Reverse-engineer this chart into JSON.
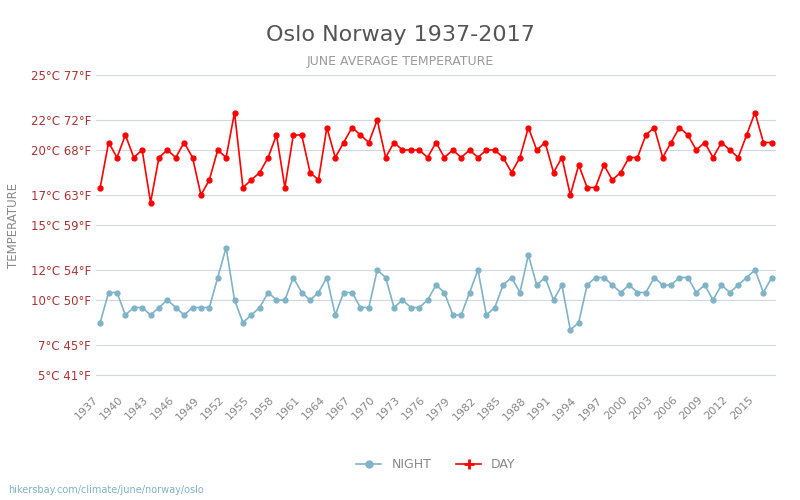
{
  "title": "Oslo Norway 1937-2017",
  "subtitle": "JUNE AVERAGE TEMPERATURE",
  "ylabel": "TEMPERATURE",
  "footer": "hikersbay.com/climate/june/norway/oslo",
  "yticks_c": [
    5,
    7,
    10,
    12,
    15,
    17,
    20,
    22,
    25
  ],
  "yticks_f": [
    41,
    45,
    50,
    54,
    59,
    63,
    68,
    72,
    77
  ],
  "ylim": [
    4,
    26
  ],
  "years": [
    1937,
    1938,
    1939,
    1940,
    1941,
    1942,
    1943,
    1944,
    1945,
    1946,
    1947,
    1948,
    1949,
    1950,
    1951,
    1952,
    1953,
    1954,
    1955,
    1956,
    1957,
    1958,
    1959,
    1960,
    1961,
    1962,
    1963,
    1964,
    1965,
    1966,
    1967,
    1968,
    1969,
    1970,
    1971,
    1972,
    1973,
    1974,
    1975,
    1976,
    1977,
    1978,
    1979,
    1980,
    1981,
    1982,
    1983,
    1984,
    1985,
    1986,
    1987,
    1988,
    1989,
    1990,
    1991,
    1992,
    1993,
    1994,
    1995,
    1996,
    1997,
    1998,
    1999,
    2000,
    2001,
    2002,
    2003,
    2004,
    2005,
    2006,
    2007,
    2008,
    2009,
    2010,
    2011,
    2012,
    2013,
    2014,
    2015,
    2016,
    2017
  ],
  "day_temps": [
    17.5,
    20.5,
    19.5,
    21.0,
    19.5,
    20.0,
    16.5,
    19.5,
    20.0,
    19.5,
    20.5,
    19.5,
    17.0,
    18.0,
    20.0,
    19.5,
    22.5,
    17.5,
    18.0,
    18.5,
    19.5,
    21.0,
    17.5,
    21.0,
    21.0,
    18.5,
    18.0,
    21.5,
    19.5,
    20.5,
    21.5,
    21.0,
    20.5,
    22.0,
    19.5,
    20.5,
    20.0,
    20.0,
    20.0,
    19.5,
    20.5,
    19.5,
    20.0,
    19.5,
    20.0,
    19.5,
    20.0,
    20.0,
    19.5,
    18.5,
    19.5,
    21.5,
    20.0,
    20.5,
    18.5,
    19.5,
    17.0,
    19.0,
    17.5,
    17.5,
    19.0,
    18.0,
    18.5,
    19.5,
    19.5,
    21.0,
    21.5,
    19.5,
    20.5,
    21.5,
    21.0,
    20.0,
    20.5,
    19.5,
    20.5,
    20.0,
    19.5,
    21.0,
    22.5,
    20.5,
    20.5
  ],
  "night_temps": [
    8.5,
    10.5,
    10.5,
    9.0,
    9.5,
    9.5,
    9.0,
    9.5,
    10.0,
    9.5,
    9.0,
    9.5,
    9.5,
    9.5,
    11.5,
    13.5,
    10.0,
    8.5,
    9.0,
    9.5,
    10.5,
    10.0,
    10.0,
    11.5,
    10.5,
    10.0,
    10.5,
    11.5,
    9.0,
    10.5,
    10.5,
    9.5,
    9.5,
    12.0,
    11.5,
    9.5,
    10.0,
    9.5,
    9.5,
    10.0,
    11.0,
    10.5,
    9.0,
    9.0,
    10.5,
    12.0,
    9.0,
    9.5,
    11.0,
    11.5,
    10.5,
    13.0,
    11.0,
    11.5,
    10.0,
    11.0,
    8.0,
    8.5,
    11.0,
    11.5,
    11.5,
    11.0,
    10.5,
    11.0,
    10.5,
    10.5,
    11.5,
    11.0,
    11.0,
    11.5,
    11.5,
    10.5,
    11.0,
    10.0,
    11.0,
    10.5,
    11.0,
    11.5,
    12.0,
    10.5,
    11.5
  ],
  "day_color": "#ff0000",
  "night_color": "#7fb3c8",
  "bg_color": "#ffffff",
  "grid_color": "#d0d8e0",
  "title_color": "#555555",
  "subtitle_color": "#999999",
  "ylabel_color": "#888888",
  "tick_color": "#aa3333",
  "xtick_color": "#888888",
  "xtick_years": [
    1937,
    1940,
    1943,
    1946,
    1949,
    1952,
    1955,
    1958,
    1961,
    1964,
    1967,
    1970,
    1973,
    1976,
    1979,
    1982,
    1985,
    1988,
    1991,
    1994,
    1997,
    2000,
    2003,
    2006,
    2009,
    2012,
    2015
  ]
}
